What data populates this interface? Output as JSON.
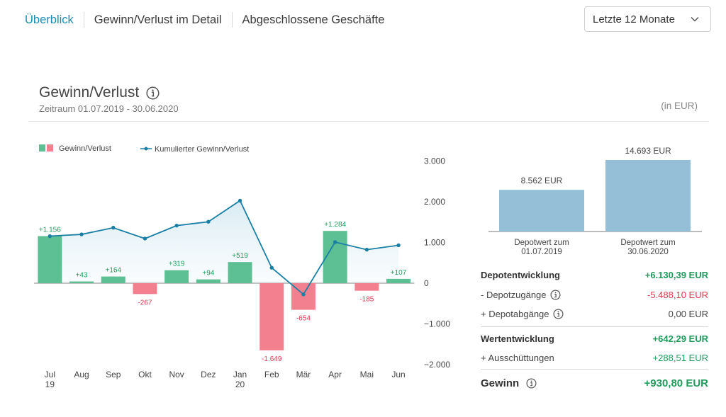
{
  "tabs": [
    {
      "label": "Überblick",
      "active": true
    },
    {
      "label": "Gewinn/Verlust im Detail",
      "active": false
    },
    {
      "label": "Abgeschlossene Geschäfte",
      "active": false
    }
  ],
  "range_select": {
    "value": "Letzte 12 Monate"
  },
  "header": {
    "title": "Gewinn/Verlust",
    "subtitle": "Zeitraum 01.07.2019 - 30.06.2020",
    "unit": "(in EUR)"
  },
  "colors": {
    "accent": "#1a8fb5",
    "gain": "#5dbf94",
    "loss": "#f2808f",
    "line": "#1a7fa5",
    "depot_bar": "#94bfd6",
    "gain_text": "#1f9c5c",
    "loss_text": "#e0394f"
  },
  "chart_data": [
    {
      "type": "bar+line",
      "legend": [
        "Gewinn/Verlust",
        "Kumulierter Gewinn/Verlust"
      ],
      "legend_position": "top-left",
      "categories": [
        {
          "label": "Jul",
          "sub": "19"
        },
        {
          "label": "Aug",
          "sub": ""
        },
        {
          "label": "Sep",
          "sub": ""
        },
        {
          "label": "Okt",
          "sub": ""
        },
        {
          "label": "Nov",
          "sub": ""
        },
        {
          "label": "Dez",
          "sub": ""
        },
        {
          "label": "Jan",
          "sub": "20"
        },
        {
          "label": "Feb",
          "sub": ""
        },
        {
          "label": "Mär",
          "sub": ""
        },
        {
          "label": "Apr",
          "sub": ""
        },
        {
          "label": "Mai",
          "sub": ""
        },
        {
          "label": "Jun",
          "sub": ""
        }
      ],
      "series": [
        {
          "name": "Gewinn/Verlust",
          "kind": "bar",
          "values": [
            1156,
            43,
            164,
            -267,
            319,
            94,
            519,
            -1649,
            -654,
            1284,
            -185,
            107
          ],
          "labels": [
            "+1.156",
            "+43",
            "+164",
            "-267",
            "+319",
            "+94",
            "+519",
            "-1.649",
            "-654",
            "+1.284",
            "-185",
            "+107"
          ]
        },
        {
          "name": "Kumulierter Gewinn/Verlust",
          "kind": "line",
          "values": [
            1156,
            1199,
            1363,
            1096,
            1415,
            1509,
            2028,
            379,
            -275,
            1009,
            824,
            931
          ]
        }
      ],
      "y_axis": {
        "position": "right",
        "ticks": [
          "3.000",
          "2.000",
          "1.000",
          "0",
          "−1.000",
          "−2.000"
        ],
        "tick_values": [
          3000,
          2000,
          1000,
          0,
          -1000,
          -2000
        ]
      },
      "ylim": [
        -2000,
        3000
      ]
    },
    {
      "type": "bar",
      "categories": [
        "Depotwert zum 01.07.2019",
        "Depotwert zum 30.06.2020"
      ],
      "category_lines": [
        [
          "Depotwert zum",
          "01.07.2019"
        ],
        [
          "Depotwert zum",
          "30.06.2020"
        ]
      ],
      "values": [
        8562,
        14693
      ],
      "labels": [
        "8.562 EUR",
        "14.693 EUR"
      ]
    }
  ],
  "summary": {
    "rows": [
      {
        "label": "Depotentwicklung",
        "value": "+6.130,39 EUR",
        "bold": true,
        "tone": "pos",
        "info": false
      },
      {
        "label": "- Depotzugänge",
        "value": "-5.488,10 EUR",
        "bold": false,
        "tone": "neg",
        "info": true
      },
      {
        "label": "+ Depotabgänge",
        "value": "0,00 EUR",
        "bold": false,
        "tone": "neu",
        "info": true
      },
      {
        "label": "Wertentwicklung",
        "value": "+642,29 EUR",
        "bold": true,
        "tone": "pos",
        "info": false
      },
      {
        "label": "+ Ausschüttungen",
        "value": "+288,51 EUR",
        "bold": false,
        "tone": "pos",
        "info": false
      }
    ],
    "total": {
      "label": "Gewinn",
      "value": "+930,80 EUR"
    }
  }
}
